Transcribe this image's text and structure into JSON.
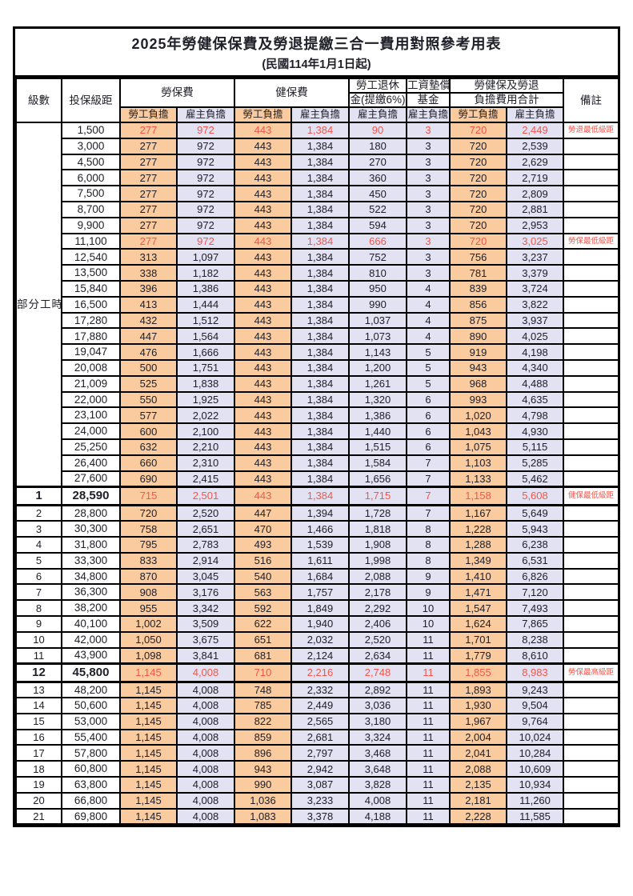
{
  "title": "2025年勞健保保費及勞退提繳三合一費用對照參考用表",
  "subtitle": "(民國114年1月1日起)",
  "colors": {
    "worker_bg": "#f9cb9f",
    "employer_bg": "#e2e2f2",
    "highlight_red": "#f3564b",
    "border": "#000000"
  },
  "header": {
    "level": "級數",
    "bracket": "投保級距",
    "labor_ins": "勞保費",
    "health_ins": "健保費",
    "pension_line1": "勞工退休",
    "pension_line2": "金(提繳6%)",
    "wage_fund_line1": "工資墊償",
    "wage_fund_line2": "基金",
    "total_line1": "勞健保及勞退",
    "total_line2": "負擔費用合計",
    "remark": "備註",
    "worker": "勞工負擔",
    "employer": "雇主負擔"
  },
  "group_label": "部分工時",
  "group_rows": 23,
  "rows": [
    {
      "level": "",
      "bracket": "1,500",
      "v": [
        "277",
        "972",
        "443",
        "1,384",
        "90",
        "3",
        "720",
        "2,449"
      ],
      "remark": "勞退最低級距",
      "red": true,
      "bold": false
    },
    {
      "level": "",
      "bracket": "3,000",
      "v": [
        "277",
        "972",
        "443",
        "1,384",
        "180",
        "3",
        "720",
        "2,539"
      ],
      "remark": "",
      "red": false,
      "bold": false
    },
    {
      "level": "",
      "bracket": "4,500",
      "v": [
        "277",
        "972",
        "443",
        "1,384",
        "270",
        "3",
        "720",
        "2,629"
      ],
      "remark": "",
      "red": false,
      "bold": false
    },
    {
      "level": "",
      "bracket": "6,000",
      "v": [
        "277",
        "972",
        "443",
        "1,384",
        "360",
        "3",
        "720",
        "2,719"
      ],
      "remark": "",
      "red": false,
      "bold": false
    },
    {
      "level": "",
      "bracket": "7,500",
      "v": [
        "277",
        "972",
        "443",
        "1,384",
        "450",
        "3",
        "720",
        "2,809"
      ],
      "remark": "",
      "red": false,
      "bold": false
    },
    {
      "level": "",
      "bracket": "8,700",
      "v": [
        "277",
        "972",
        "443",
        "1,384",
        "522",
        "3",
        "720",
        "2,881"
      ],
      "remark": "",
      "red": false,
      "bold": false
    },
    {
      "level": "",
      "bracket": "9,900",
      "v": [
        "277",
        "972",
        "443",
        "1,384",
        "594",
        "3",
        "720",
        "2,953"
      ],
      "remark": "",
      "red": false,
      "bold": false
    },
    {
      "level": "",
      "bracket": "11,100",
      "v": [
        "277",
        "972",
        "443",
        "1,384",
        "666",
        "3",
        "720",
        "3,025"
      ],
      "remark": "勞保最低級距",
      "red": true,
      "bold": false
    },
    {
      "level": "",
      "bracket": "12,540",
      "v": [
        "313",
        "1,097",
        "443",
        "1,384",
        "752",
        "3",
        "756",
        "3,237"
      ],
      "remark": "",
      "red": false,
      "bold": false
    },
    {
      "level": "",
      "bracket": "13,500",
      "v": [
        "338",
        "1,182",
        "443",
        "1,384",
        "810",
        "3",
        "781",
        "3,379"
      ],
      "remark": "",
      "red": false,
      "bold": false
    },
    {
      "level": "",
      "bracket": "15,840",
      "v": [
        "396",
        "1,386",
        "443",
        "1,384",
        "950",
        "4",
        "839",
        "3,724"
      ],
      "remark": "",
      "red": false,
      "bold": false
    },
    {
      "level": "",
      "bracket": "16,500",
      "v": [
        "413",
        "1,444",
        "443",
        "1,384",
        "990",
        "4",
        "856",
        "3,822"
      ],
      "remark": "",
      "red": false,
      "bold": false
    },
    {
      "level": "",
      "bracket": "17,280",
      "v": [
        "432",
        "1,512",
        "443",
        "1,384",
        "1,037",
        "4",
        "875",
        "3,937"
      ],
      "remark": "",
      "red": false,
      "bold": false
    },
    {
      "level": "",
      "bracket": "17,880",
      "v": [
        "447",
        "1,564",
        "443",
        "1,384",
        "1,073",
        "4",
        "890",
        "4,025"
      ],
      "remark": "",
      "red": false,
      "bold": false
    },
    {
      "level": "",
      "bracket": "19,047",
      "v": [
        "476",
        "1,666",
        "443",
        "1,384",
        "1,143",
        "5",
        "919",
        "4,198"
      ],
      "remark": "",
      "red": false,
      "bold": false
    },
    {
      "level": "",
      "bracket": "20,008",
      "v": [
        "500",
        "1,751",
        "443",
        "1,384",
        "1,200",
        "5",
        "943",
        "4,340"
      ],
      "remark": "",
      "red": false,
      "bold": false
    },
    {
      "level": "",
      "bracket": "21,009",
      "v": [
        "525",
        "1,838",
        "443",
        "1,384",
        "1,261",
        "5",
        "968",
        "4,488"
      ],
      "remark": "",
      "red": false,
      "bold": false
    },
    {
      "level": "",
      "bracket": "22,000",
      "v": [
        "550",
        "1,925",
        "443",
        "1,384",
        "1,320",
        "6",
        "993",
        "4,635"
      ],
      "remark": "",
      "red": false,
      "bold": false
    },
    {
      "level": "",
      "bracket": "23,100",
      "v": [
        "577",
        "2,022",
        "443",
        "1,384",
        "1,386",
        "6",
        "1,020",
        "4,798"
      ],
      "remark": "",
      "red": false,
      "bold": false
    },
    {
      "level": "",
      "bracket": "24,000",
      "v": [
        "600",
        "2,100",
        "443",
        "1,384",
        "1,440",
        "6",
        "1,043",
        "4,930"
      ],
      "remark": "",
      "red": false,
      "bold": false
    },
    {
      "level": "",
      "bracket": "25,250",
      "v": [
        "632",
        "2,210",
        "443",
        "1,384",
        "1,515",
        "6",
        "1,075",
        "5,115"
      ],
      "remark": "",
      "red": false,
      "bold": false
    },
    {
      "level": "",
      "bracket": "26,400",
      "v": [
        "660",
        "2,310",
        "443",
        "1,384",
        "1,584",
        "7",
        "1,103",
        "5,285"
      ],
      "remark": "",
      "red": false,
      "bold": false
    },
    {
      "level": "",
      "bracket": "27,600",
      "v": [
        "690",
        "2,415",
        "443",
        "1,384",
        "1,656",
        "7",
        "1,133",
        "5,462"
      ],
      "remark": "",
      "red": false,
      "bold": false
    },
    {
      "level": "1",
      "bracket": "28,590",
      "v": [
        "715",
        "2,501",
        "443",
        "1,384",
        "1,715",
        "7",
        "1,158",
        "5,608"
      ],
      "remark": "健保最低級距",
      "red": true,
      "bold": true
    },
    {
      "level": "2",
      "bracket": "28,800",
      "v": [
        "720",
        "2,520",
        "447",
        "1,394",
        "1,728",
        "7",
        "1,167",
        "5,649"
      ],
      "remark": "",
      "red": false,
      "bold": false
    },
    {
      "level": "3",
      "bracket": "30,300",
      "v": [
        "758",
        "2,651",
        "470",
        "1,466",
        "1,818",
        "8",
        "1,228",
        "5,943"
      ],
      "remark": "",
      "red": false,
      "bold": false
    },
    {
      "level": "4",
      "bracket": "31,800",
      "v": [
        "795",
        "2,783",
        "493",
        "1,539",
        "1,908",
        "8",
        "1,288",
        "6,238"
      ],
      "remark": "",
      "red": false,
      "bold": false
    },
    {
      "level": "5",
      "bracket": "33,300",
      "v": [
        "833",
        "2,914",
        "516",
        "1,611",
        "1,998",
        "8",
        "1,349",
        "6,531"
      ],
      "remark": "",
      "red": false,
      "bold": false
    },
    {
      "level": "6",
      "bracket": "34,800",
      "v": [
        "870",
        "3,045",
        "540",
        "1,684",
        "2,088",
        "9",
        "1,410",
        "6,826"
      ],
      "remark": "",
      "red": false,
      "bold": false
    },
    {
      "level": "7",
      "bracket": "36,300",
      "v": [
        "908",
        "3,176",
        "563",
        "1,757",
        "2,178",
        "9",
        "1,471",
        "7,120"
      ],
      "remark": "",
      "red": false,
      "bold": false
    },
    {
      "level": "8",
      "bracket": "38,200",
      "v": [
        "955",
        "3,342",
        "592",
        "1,849",
        "2,292",
        "10",
        "1,547",
        "7,493"
      ],
      "remark": "",
      "red": false,
      "bold": false
    },
    {
      "level": "9",
      "bracket": "40,100",
      "v": [
        "1,002",
        "3,509",
        "622",
        "1,940",
        "2,406",
        "10",
        "1,624",
        "7,865"
      ],
      "remark": "",
      "red": false,
      "bold": false
    },
    {
      "level": "10",
      "bracket": "42,000",
      "v": [
        "1,050",
        "3,675",
        "651",
        "2,032",
        "2,520",
        "11",
        "1,701",
        "8,238"
      ],
      "remark": "",
      "red": false,
      "bold": false
    },
    {
      "level": "11",
      "bracket": "43,900",
      "v": [
        "1,098",
        "3,841",
        "681",
        "2,124",
        "2,634",
        "11",
        "1,779",
        "8,610"
      ],
      "remark": "",
      "red": false,
      "bold": false
    },
    {
      "level": "12",
      "bracket": "45,800",
      "v": [
        "1,145",
        "4,008",
        "710",
        "2,216",
        "2,748",
        "11",
        "1,855",
        "8,983"
      ],
      "remark": "勞保最高級距",
      "red": true,
      "bold": true
    },
    {
      "level": "13",
      "bracket": "48,200",
      "v": [
        "1,145",
        "4,008",
        "748",
        "2,332",
        "2,892",
        "11",
        "1,893",
        "9,243"
      ],
      "remark": "",
      "red": false,
      "bold": false
    },
    {
      "level": "14",
      "bracket": "50,600",
      "v": [
        "1,145",
        "4,008",
        "785",
        "2,449",
        "3,036",
        "11",
        "1,930",
        "9,504"
      ],
      "remark": "",
      "red": false,
      "bold": false
    },
    {
      "level": "15",
      "bracket": "53,000",
      "v": [
        "1,145",
        "4,008",
        "822",
        "2,565",
        "3,180",
        "11",
        "1,967",
        "9,764"
      ],
      "remark": "",
      "red": false,
      "bold": false
    },
    {
      "level": "16",
      "bracket": "55,400",
      "v": [
        "1,145",
        "4,008",
        "859",
        "2,681",
        "3,324",
        "11",
        "2,004",
        "10,024"
      ],
      "remark": "",
      "red": false,
      "bold": false
    },
    {
      "level": "17",
      "bracket": "57,800",
      "v": [
        "1,145",
        "4,008",
        "896",
        "2,797",
        "3,468",
        "11",
        "2,041",
        "10,284"
      ],
      "remark": "",
      "red": false,
      "bold": false
    },
    {
      "level": "18",
      "bracket": "60,800",
      "v": [
        "1,145",
        "4,008",
        "943",
        "2,942",
        "3,648",
        "11",
        "2,088",
        "10,609"
      ],
      "remark": "",
      "red": false,
      "bold": false
    },
    {
      "level": "19",
      "bracket": "63,800",
      "v": [
        "1,145",
        "4,008",
        "990",
        "3,087",
        "3,828",
        "11",
        "2,135",
        "10,934"
      ],
      "remark": "",
      "red": false,
      "bold": false
    },
    {
      "level": "20",
      "bracket": "66,800",
      "v": [
        "1,145",
        "4,008",
        "1,036",
        "3,233",
        "4,008",
        "11",
        "2,181",
        "11,260"
      ],
      "remark": "",
      "red": false,
      "bold": false
    },
    {
      "level": "21",
      "bracket": "69,800",
      "v": [
        "1,145",
        "4,008",
        "1,083",
        "3,378",
        "4,188",
        "11",
        "2,228",
        "11,585"
      ],
      "remark": "",
      "red": false,
      "bold": false
    }
  ],
  "value_col_kinds": [
    "w",
    "e",
    "w",
    "e",
    "e",
    "e",
    "w",
    "e"
  ]
}
